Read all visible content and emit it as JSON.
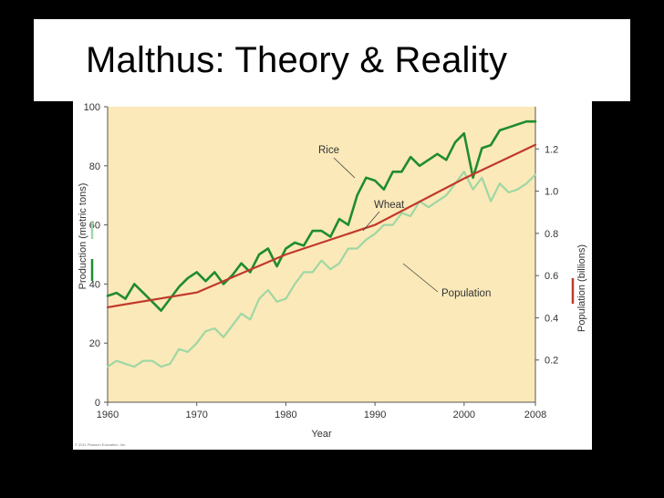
{
  "slide": {
    "title": "Malthus: Theory & Reality",
    "credit": "© 2011 Pearson Education, Inc."
  },
  "colors": {
    "plot_background": "#fbe9b9",
    "rice": "#1f8c2e",
    "wheat": "#9fd7a3",
    "population": "#c0392b"
  },
  "chart_data": {
    "type": "line",
    "xlabel": "Year",
    "ylabel": "Production (metric tons)",
    "y2label": "Population (billions)",
    "xlim": [
      1960,
      2008
    ],
    "ylim": [
      0,
      100
    ],
    "y2lim": [
      0,
      1.4
    ],
    "x_ticks": [
      "1960",
      "1970",
      "1980",
      "1990",
      "2000",
      "2008"
    ],
    "y_ticks": [
      "0",
      "20",
      "40",
      "60",
      "80",
      "100"
    ],
    "y2_ticks": [
      "0.2",
      "0.4",
      "0.6",
      "0.8",
      "1.0",
      "1.2"
    ],
    "grid": false,
    "series": [
      {
        "name": "Rice",
        "axis": "left",
        "x": [
          1960,
          1961,
          1962,
          1963,
          1964,
          1965,
          1966,
          1967,
          1968,
          1969,
          1970,
          1971,
          1972,
          1973,
          1974,
          1975,
          1976,
          1977,
          1978,
          1979,
          1980,
          1981,
          1982,
          1983,
          1984,
          1985,
          1986,
          1987,
          1988,
          1989,
          1990,
          1991,
          1992,
          1993,
          1994,
          1995,
          1996,
          1997,
          1998,
          1999,
          2000,
          2001,
          2002,
          2003,
          2004,
          2005,
          2006,
          2007,
          2008
        ],
        "values": [
          36,
          37,
          35,
          40,
          37,
          34,
          31,
          35,
          39,
          42,
          44,
          41,
          44,
          40,
          43,
          47,
          44,
          50,
          52,
          46,
          52,
          54,
          53,
          58,
          58,
          56,
          62,
          60,
          70,
          76,
          75,
          72,
          78,
          78,
          83,
          80,
          82,
          84,
          82,
          88,
          91,
          76,
          86,
          87,
          92,
          93,
          94,
          95,
          95
        ]
      },
      {
        "name": "Wheat",
        "axis": "left",
        "x": [
          1960,
          1961,
          1962,
          1963,
          1964,
          1965,
          1966,
          1967,
          1968,
          1969,
          1970,
          1971,
          1972,
          1973,
          1974,
          1975,
          1976,
          1977,
          1978,
          1979,
          1980,
          1981,
          1982,
          1983,
          1984,
          1985,
          1986,
          1987,
          1988,
          1989,
          1990,
          1991,
          1992,
          1993,
          1994,
          1995,
          1996,
          1997,
          1998,
          1999,
          2000,
          2001,
          2002,
          2003,
          2004,
          2005,
          2006,
          2007,
          2008
        ],
        "values": [
          12,
          14,
          13,
          12,
          14,
          14,
          12,
          13,
          18,
          17,
          20,
          24,
          25,
          22,
          26,
          30,
          28,
          35,
          38,
          34,
          35,
          40,
          44,
          44,
          48,
          45,
          47,
          52,
          52,
          55,
          57,
          60,
          60,
          64,
          63,
          68,
          66,
          68,
          70,
          74,
          78,
          72,
          76,
          68,
          74,
          71,
          72,
          74,
          77
        ]
      },
      {
        "name": "Population",
        "axis": "right",
        "x": [
          1960,
          1970,
          1980,
          1990,
          2000,
          2008
        ],
        "values": [
          0.45,
          0.52,
          0.7,
          0.84,
          1.06,
          1.22
        ]
      }
    ]
  }
}
